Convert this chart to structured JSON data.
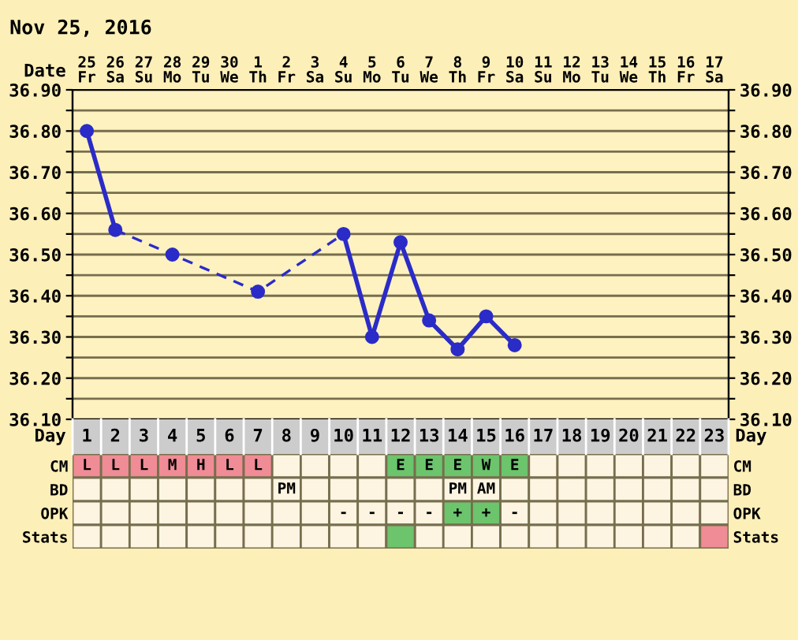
{
  "chart_data": [
    {
      "type": "line",
      "title": "Nov 25, 2016",
      "xlabel": "Date",
      "categories": [
        "25\nFr",
        "26\nSa",
        "27\nSu",
        "28\nMo",
        "29\nTu",
        "30\nWe",
        "1\nTh",
        "2\nFr",
        "3\nSa",
        "4\nSu",
        "5\nMo",
        "6\nTu",
        "7\nWe",
        "8\nTh",
        "9\nFr",
        "10\nSa",
        "11\nSu",
        "12\nMo",
        "13\nTu",
        "14\nWe",
        "15\nTh",
        "16\nFr",
        "17\nSa"
      ],
      "series": [
        {
          "type": "line",
          "line_style": "solid",
          "color": "#2b2bc8",
          "values": [
            36.8,
            36.56,
            null,
            null,
            null,
            null,
            null,
            null,
            null,
            null,
            null,
            null,
            null,
            null,
            null,
            null,
            null,
            null,
            null,
            null,
            null,
            null,
            null
          ]
        },
        {
          "type": "line",
          "line_style": "solid",
          "color": "#2b2bc8",
          "values": [
            null,
            null,
            null,
            null,
            null,
            null,
            null,
            null,
            null,
            36.55,
            36.3,
            36.53,
            36.34,
            36.27,
            36.35,
            36.28,
            null,
            null,
            null,
            null,
            null,
            null,
            null
          ]
        },
        {
          "type": "line",
          "line_style": "dashed",
          "color": "#2b2bc8",
          "values": [
            null,
            36.56,
            null,
            36.5,
            null,
            null,
            36.41,
            null,
            null,
            36.55,
            null,
            null,
            null,
            null,
            null,
            null,
            null,
            null,
            null,
            null,
            null,
            null,
            null
          ]
        },
        {
          "type": "scatter",
          "marker": "circle",
          "color": "#2b2bc8",
          "values": [
            36.8,
            null,
            null,
            36.5,
            null,
            null,
            36.41,
            null,
            null,
            null,
            null,
            null,
            null,
            null,
            null,
            null,
            null,
            null,
            null,
            null,
            null,
            null,
            null
          ]
        },
        {
          "type": "scatter",
          "marker": "circle",
          "color": "#2b2bc8",
          "values": [
            null,
            36.56,
            null,
            null,
            null,
            null,
            null,
            null,
            null,
            36.55,
            36.3,
            36.53,
            36.34,
            36.27,
            36.35,
            36.28,
            null,
            null,
            null,
            null,
            null,
            null,
            null
          ]
        }
      ],
      "ylim": [
        36.1,
        36.9
      ],
      "yticks": [
        {
          "value": 36.1,
          "label": "36.10"
        },
        {
          "value": 36.15,
          "label": null
        },
        {
          "value": 36.2,
          "label": "36.20"
        },
        {
          "value": 36.25,
          "label": null
        },
        {
          "value": 36.3,
          "label": "36.30"
        },
        {
          "value": 36.35,
          "label": null
        },
        {
          "value": 36.4,
          "label": "36.40"
        },
        {
          "value": 36.45,
          "label": null
        },
        {
          "value": 36.5,
          "label": "36.50"
        },
        {
          "value": 36.55,
          "label": null
        },
        {
          "value": 36.6,
          "label": "36.60"
        },
        {
          "value": 36.65,
          "label": null
        },
        {
          "value": 36.7,
          "label": "36.70"
        },
        {
          "value": 36.75,
          "label": null
        },
        {
          "value": 36.8,
          "label": "36.80"
        },
        {
          "value": 36.85,
          "label": null
        },
        {
          "value": 36.9,
          "label": "36.90"
        }
      ],
      "y2lim": [
        36.1,
        36.9
      ],
      "y2ticks": [
        {
          "value": 36.1,
          "label": "36.10"
        },
        {
          "value": 36.15,
          "label": null
        },
        {
          "value": 36.2,
          "label": "36.20"
        },
        {
          "value": 36.25,
          "label": null
        },
        {
          "value": 36.3,
          "label": "36.30"
        },
        {
          "value": 36.35,
          "label": null
        },
        {
          "value": 36.4,
          "label": "36.40"
        },
        {
          "value": 36.45,
          "label": null
        },
        {
          "value": 36.5,
          "label": "36.50"
        },
        {
          "value": 36.55,
          "label": null
        },
        {
          "value": 36.6,
          "label": "36.60"
        },
        {
          "value": 36.65,
          "label": null
        },
        {
          "value": 36.7,
          "label": "36.70"
        },
        {
          "value": 36.75,
          "label": null
        },
        {
          "value": 36.8,
          "label": "36.80"
        },
        {
          "value": 36.85,
          "label": null
        },
        {
          "value": 36.9,
          "label": "36.90"
        }
      ],
      "grid": true,
      "legend": false
    },
    {
      "type": "heatmap",
      "xlabel": "Day",
      "categories": [
        "1",
        "2",
        "3",
        "4",
        "5",
        "6",
        "7",
        "8",
        "9",
        "10",
        "11",
        "12",
        "13",
        "14",
        "15",
        "16",
        "17",
        "18",
        "19",
        "20",
        "21",
        "22",
        "23"
      ],
      "y_categories": [
        "CM",
        "BD",
        "OPK",
        "Stats"
      ],
      "y2_categories": [
        "CM",
        "BD",
        "OPK",
        "Stats"
      ],
      "cells": [
        [
          null,
          null,
          null,
          null,
          null,
          null,
          null,
          null,
          null,
          null,
          null,
          null,
          null,
          null,
          null,
          null,
          null,
          null,
          null,
          null,
          null,
          null,
          null
        ],
        [
          null,
          null,
          null,
          null,
          null,
          null,
          null,
          null,
          null,
          null,
          null,
          null,
          null,
          null,
          null,
          null,
          null,
          null,
          null,
          null,
          null,
          null,
          null
        ],
        [
          null,
          null,
          null,
          null,
          null,
          null,
          null,
          null,
          null,
          null,
          null,
          null,
          null,
          null,
          null,
          null,
          null,
          null,
          null,
          null,
          null,
          null,
          null
        ],
        [
          null,
          null,
          null,
          null,
          null,
          null,
          null,
          null,
          null,
          null,
          null,
          null,
          null,
          null,
          null,
          null,
          null,
          null,
          null,
          null,
          null,
          null,
          null
        ]
      ],
      "cell_labels": [
        [
          "L",
          "L",
          "L",
          "M",
          "H",
          "L",
          "L",
          null,
          null,
          null,
          null,
          "E",
          "E",
          "E",
          "W",
          "E",
          null,
          null,
          null,
          null,
          null,
          null,
          null
        ],
        [
          null,
          null,
          null,
          null,
          null,
          null,
          null,
          "PM",
          null,
          null,
          null,
          null,
          null,
          "PM",
          "AM",
          null,
          null,
          null,
          null,
          null,
          null,
          null,
          null
        ],
        [
          null,
          null,
          null,
          null,
          null,
          null,
          null,
          null,
          null,
          "-",
          "-",
          "-",
          "-",
          "+",
          "+",
          "-",
          null,
          null,
          null,
          null,
          null,
          null,
          null
        ],
        [
          null,
          null,
          null,
          null,
          null,
          null,
          null,
          null,
          null,
          null,
          null,
          null,
          null,
          null,
          null,
          null,
          null,
          null,
          null,
          null,
          null,
          null,
          null
        ]
      ],
      "colors": [
        [
          "#f08c96",
          "#f08c96",
          "#f08c96",
          "#f08c96",
          "#f08c96",
          "#f08c96",
          "#f08c96",
          "#fdf5e2",
          "#fdf5e2",
          "#fdf5e2",
          "#fdf5e2",
          "#6cc46c",
          "#6cc46c",
          "#6cc46c",
          "#6cc46c",
          "#6cc46c",
          "#fdf5e2",
          "#fdf5e2",
          "#fdf5e2",
          "#fdf5e2",
          "#fdf5e2",
          "#fdf5e2",
          "#fdf5e2"
        ],
        [
          "#fdf5e2",
          "#fdf5e2",
          "#fdf5e2",
          "#fdf5e2",
          "#fdf5e2",
          "#fdf5e2",
          "#fdf5e2",
          "#fdf5e2",
          "#fdf5e2",
          "#fdf5e2",
          "#fdf5e2",
          "#fdf5e2",
          "#fdf5e2",
          "#fdf5e2",
          "#fdf5e2",
          "#fdf5e2",
          "#fdf5e2",
          "#fdf5e2",
          "#fdf5e2",
          "#fdf5e2",
          "#fdf5e2",
          "#fdf5e2",
          "#fdf5e2"
        ],
        [
          "#fdf5e2",
          "#fdf5e2",
          "#fdf5e2",
          "#fdf5e2",
          "#fdf5e2",
          "#fdf5e2",
          "#fdf5e2",
          "#fdf5e2",
          "#fdf5e2",
          "#fdf5e2",
          "#fdf5e2",
          "#fdf5e2",
          "#fdf5e2",
          "#6cc46c",
          "#6cc46c",
          "#fdf5e2",
          "#fdf5e2",
          "#fdf5e2",
          "#fdf5e2",
          "#fdf5e2",
          "#fdf5e2",
          "#fdf5e2",
          "#fdf5e2"
        ],
        [
          "#fdf5e2",
          "#fdf5e2",
          "#fdf5e2",
          "#fdf5e2",
          "#fdf5e2",
          "#fdf5e2",
          "#fdf5e2",
          "#fdf5e2",
          "#fdf5e2",
          "#fdf5e2",
          "#fdf5e2",
          "#6cc46c",
          "#fdf5e2",
          "#fdf5e2",
          "#fdf5e2",
          "#fdf5e2",
          "#fdf5e2",
          "#fdf5e2",
          "#fdf5e2",
          "#fdf5e2",
          "#fdf5e2",
          "#fdf5e2",
          "#f08c96"
        ]
      ]
    }
  ]
}
